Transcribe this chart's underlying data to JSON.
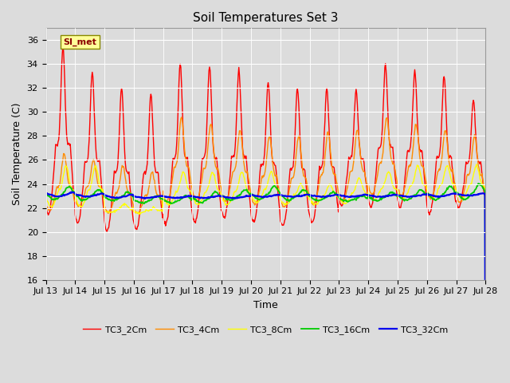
{
  "title": "Soil Temperatures Set 3",
  "xlabel": "Time",
  "ylabel": "Soil Temperature (C)",
  "ylim": [
    16,
    37
  ],
  "yticks": [
    16,
    18,
    20,
    22,
    24,
    26,
    28,
    30,
    32,
    34,
    36
  ],
  "xtick_labels": [
    "Jul 13",
    "Jul 14",
    "Jul 15",
    "Jul 16",
    "Jul 17",
    "Jul 18",
    "Jul 19",
    "Jul 20",
    "Jul 21",
    "Jul 22",
    "Jul 23",
    "Jul 24",
    "Jul 25",
    "Jul 26",
    "Jul 27",
    "Jul 28"
  ],
  "series_names": [
    "TC3_2Cm",
    "TC3_4Cm",
    "TC3_8Cm",
    "TC3_16Cm",
    "TC3_32Cm"
  ],
  "series_colors": [
    "#FF0000",
    "#FF8C00",
    "#FFFF00",
    "#00CC00",
    "#0000EE"
  ],
  "series_linewidths": [
    1.0,
    1.0,
    1.0,
    1.3,
    1.6
  ],
  "annotation_text": "SI_met",
  "background_color": "#DCDCDC",
  "grid_color": "#FFFFFF",
  "title_fontsize": 11,
  "axis_label_fontsize": 9,
  "tick_fontsize": 8
}
